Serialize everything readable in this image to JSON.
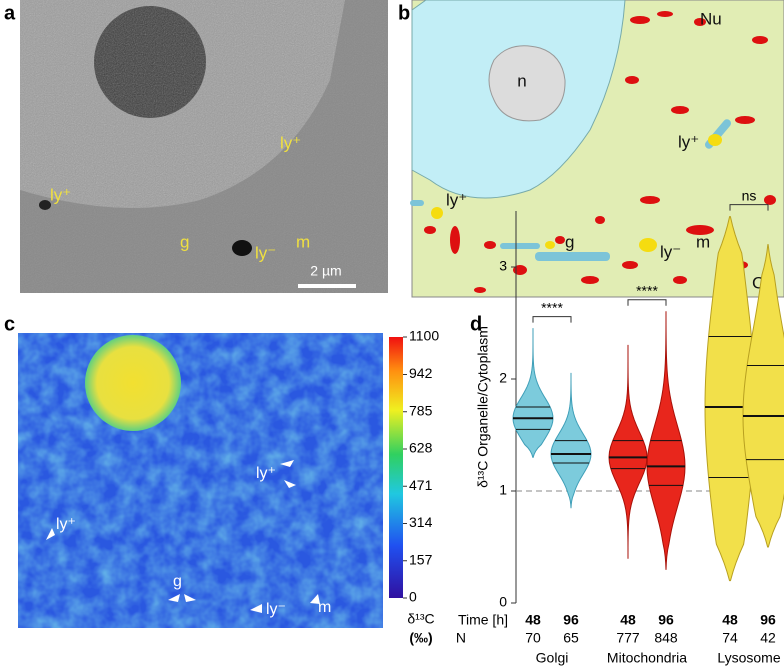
{
  "panel_letters": [
    "a",
    "b",
    "c",
    "d"
  ],
  "panel_a": {
    "labels": [
      "ly⁺",
      "ly⁺",
      "g",
      "ly⁻",
      "m"
    ],
    "scale_bar": "2 µm"
  },
  "panel_b": {
    "labels": [
      "Nu",
      "n",
      "ly⁺",
      "ly⁺",
      "g",
      "ly⁻",
      "m",
      "Cy"
    ]
  },
  "panel_c": {
    "labels": [
      "ly⁺",
      "ly⁺",
      "g",
      "ly⁻",
      "m"
    ],
    "colorbar": {
      "lim": [
        0,
        1100
      ],
      "ticks": [
        0,
        157,
        314,
        471,
        628,
        785,
        942,
        1100
      ],
      "label": "δ¹³C",
      "unit": "(‰)"
    }
  },
  "chart_data": {
    "type": "violin",
    "ylabel": "δ¹³C Organelle/Cytoplasm",
    "ylim": [
      0,
      3.5
    ],
    "yticks": [
      0,
      1,
      2,
      3
    ],
    "reference_line": 1,
    "row_labels": [
      "Time [h]",
      "N"
    ],
    "groups": [
      {
        "name": "Golgi",
        "color": "#7ccbdc",
        "significance": "****",
        "violins": [
          {
            "time": 48,
            "n": 70,
            "min": 1.3,
            "q1": 1.55,
            "median": 1.65,
            "q3": 1.75,
            "max": 2.45
          },
          {
            "time": 96,
            "n": 65,
            "min": 0.85,
            "q1": 1.25,
            "median": 1.33,
            "q3": 1.45,
            "max": 2.05
          }
        ]
      },
      {
        "name": "Mitochondria",
        "color": "#e8261c",
        "significance": "****",
        "violins": [
          {
            "time": 48,
            "n": 777,
            "min": 0.4,
            "q1": 1.2,
            "median": 1.3,
            "q3": 1.45,
            "max": 2.3
          },
          {
            "time": 96,
            "n": 848,
            "min": 0.3,
            "q1": 1.05,
            "median": 1.22,
            "q3": 1.45,
            "max": 2.6
          }
        ]
      },
      {
        "name": "Lysosome",
        "color": "#f2e04a",
        "significance": "ns",
        "violins": [
          {
            "time": 48,
            "n": 74,
            "min": 0.2,
            "q1": 1.12,
            "median": 1.75,
            "q3": 2.38,
            "max": 3.45
          },
          {
            "time": 96,
            "n": 42,
            "min": 0.5,
            "q1": 1.28,
            "median": 1.67,
            "q3": 2.12,
            "max": 3.2
          }
        ]
      }
    ]
  }
}
